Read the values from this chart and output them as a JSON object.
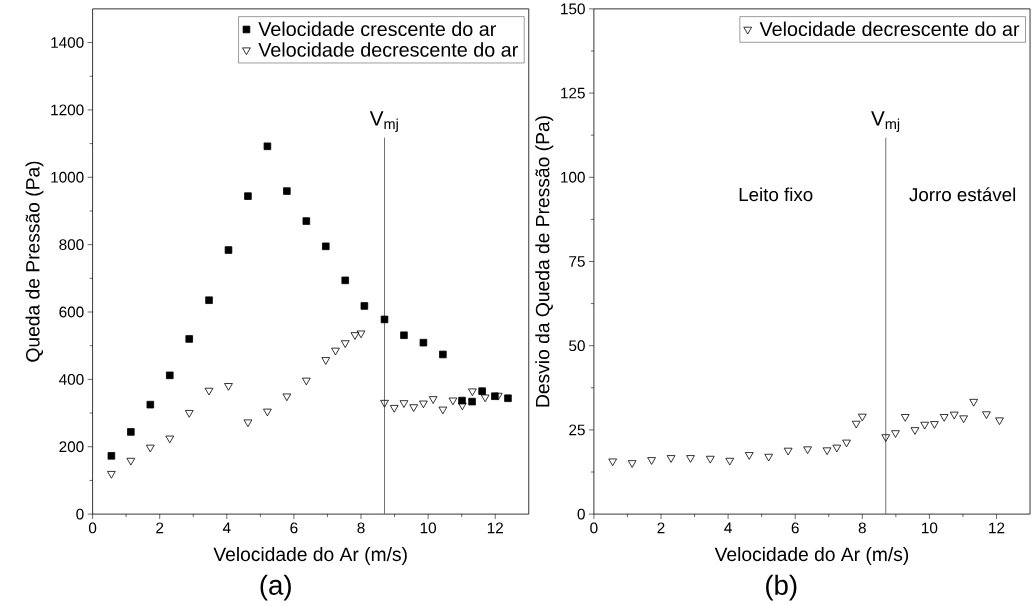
{
  "chart_data": [
    {
      "type": "scatter",
      "xlabel": "Velocidade do Ar (m/s)",
      "ylabel": "Queda de Pressão (Pa)",
      "xlim": [
        0,
        13
      ],
      "ylim": [
        0,
        1500
      ],
      "xticks": [
        0,
        2,
        4,
        6,
        8,
        10,
        12
      ],
      "yticks": [
        0,
        200,
        400,
        600,
        800,
        1000,
        1200,
        1400
      ],
      "legend": "top right",
      "series": [
        {
          "name": "Velocidade crescente do ar",
          "color": "#000000",
          "marker": "square",
          "x": [
            0.56,
            1.14,
            1.72,
            2.3,
            2.88,
            3.47,
            4.05,
            4.63,
            5.21,
            5.79,
            6.37,
            6.95,
            7.53,
            8.1,
            8.7,
            9.28,
            9.86,
            10.44,
            11.01,
            11.31,
            11.61,
            11.99,
            12.38
          ],
          "values": [
            173,
            244,
            325,
            412,
            520,
            635,
            784,
            944,
            1092,
            959,
            870,
            795,
            694,
            618,
            578,
            531,
            509,
            474,
            337,
            334,
            365,
            350,
            344
          ]
        },
        {
          "name": "Velocidade decrescente do ar",
          "color": "#000000",
          "marker": "triangle",
          "x": [
            0.56,
            1.14,
            1.72,
            2.3,
            2.88,
            3.47,
            4.05,
            4.63,
            5.21,
            5.79,
            6.37,
            6.95,
            7.24,
            7.53,
            7.82,
            8.0,
            8.7,
            8.99,
            9.28,
            9.57,
            9.86,
            10.15,
            10.44,
            10.74,
            11.02,
            11.32,
            11.7,
            12.09
          ],
          "values": [
            120,
            159,
            198,
            225,
            301,
            367,
            381,
            273,
            305,
            350,
            397,
            458,
            486,
            508,
            532,
            537,
            331,
            316,
            330,
            318,
            329,
            342,
            311,
            338,
            323,
            365,
            347,
            352
          ]
        }
      ],
      "ref_lines": [
        {
          "axis": "x",
          "value": 8.7,
          "label": "V$_{mj}$",
          "color": "#707070"
        }
      ],
      "annotations": [
        "(a)"
      ]
    },
    {
      "type": "scatter",
      "xlabel": "Velocidade do Ar (m/s)",
      "ylabel": "Desvio da Queda de Pressão (Pa)",
      "xlim": [
        0,
        13
      ],
      "ylim": [
        0,
        150
      ],
      "xticks": [
        0,
        2,
        4,
        6,
        8,
        10,
        12
      ],
      "yticks": [
        0,
        25,
        50,
        75,
        100,
        125,
        150
      ],
      "legend": "top right",
      "series": [
        {
          "name": "Velocidade decrescente do ar",
          "color": "#000000",
          "marker": "triangle",
          "x": [
            0.56,
            1.14,
            1.72,
            2.3,
            2.88,
            3.47,
            4.05,
            4.63,
            5.21,
            5.79,
            6.37,
            6.95,
            7.24,
            7.53,
            7.82,
            8.0,
            8.7,
            8.99,
            9.28,
            9.57,
            9.86,
            10.15,
            10.44,
            10.74,
            11.02,
            11.32,
            11.7,
            12.09
          ],
          "values": [
            15.7,
            15.2,
            16.1,
            16.7,
            16.7,
            16.5,
            15.9,
            17.6,
            17.1,
            18.9,
            19.3,
            19.0,
            19.8,
            21.3,
            26.9,
            29.0,
            22.9,
            24.1,
            28.9,
            25.0,
            26.6,
            26.8,
            28.9,
            29.6,
            28.5,
            33.4,
            29.7,
            27.9
          ]
        }
      ],
      "ref_lines": [
        {
          "axis": "x",
          "value": 8.7,
          "label": "V$_{mj}$",
          "color": "#707070"
        }
      ],
      "annotations": [
        "Leito fixo",
        "Jorro estável",
        "(b)"
      ]
    }
  ]
}
